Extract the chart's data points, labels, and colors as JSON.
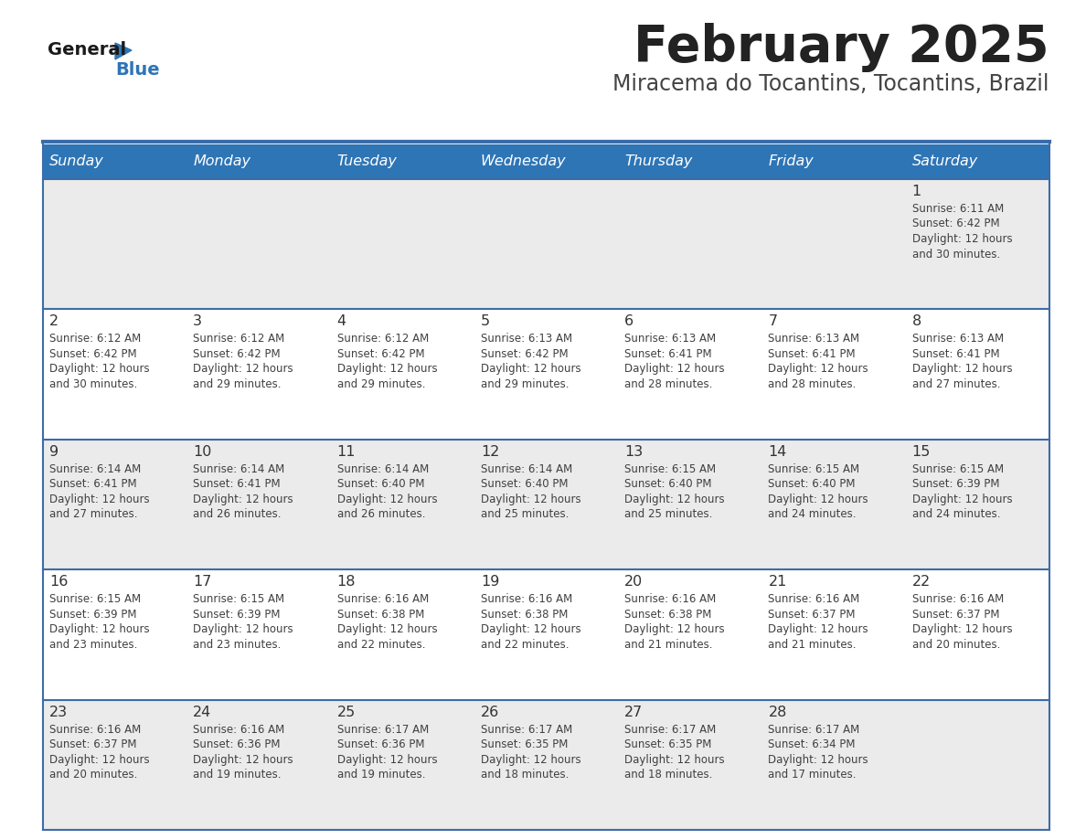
{
  "title": "February 2025",
  "subtitle": "Miracema do Tocantins, Tocantins, Brazil",
  "days_of_week": [
    "Sunday",
    "Monday",
    "Tuesday",
    "Wednesday",
    "Thursday",
    "Friday",
    "Saturday"
  ],
  "header_bg": "#2E75B6",
  "header_text": "#FFFFFF",
  "cell_bg_odd": "#EBEBEB",
  "cell_bg_even": "#FFFFFF",
  "separator_color": "#3C6CA8",
  "day_number_color": "#333333",
  "text_color": "#404040",
  "title_color": "#222222",
  "subtitle_color": "#444444",
  "calendar_data": [
    {
      "day": 1,
      "row": 0,
      "col": 6,
      "sunrise": "6:11 AM",
      "sunset": "6:42 PM",
      "daylight_hours": 12,
      "daylight_minutes": 30
    },
    {
      "day": 2,
      "row": 1,
      "col": 0,
      "sunrise": "6:12 AM",
      "sunset": "6:42 PM",
      "daylight_hours": 12,
      "daylight_minutes": 30
    },
    {
      "day": 3,
      "row": 1,
      "col": 1,
      "sunrise": "6:12 AM",
      "sunset": "6:42 PM",
      "daylight_hours": 12,
      "daylight_minutes": 29
    },
    {
      "day": 4,
      "row": 1,
      "col": 2,
      "sunrise": "6:12 AM",
      "sunset": "6:42 PM",
      "daylight_hours": 12,
      "daylight_minutes": 29
    },
    {
      "day": 5,
      "row": 1,
      "col": 3,
      "sunrise": "6:13 AM",
      "sunset": "6:42 PM",
      "daylight_hours": 12,
      "daylight_minutes": 29
    },
    {
      "day": 6,
      "row": 1,
      "col": 4,
      "sunrise": "6:13 AM",
      "sunset": "6:41 PM",
      "daylight_hours": 12,
      "daylight_minutes": 28
    },
    {
      "day": 7,
      "row": 1,
      "col": 5,
      "sunrise": "6:13 AM",
      "sunset": "6:41 PM",
      "daylight_hours": 12,
      "daylight_minutes": 28
    },
    {
      "day": 8,
      "row": 1,
      "col": 6,
      "sunrise": "6:13 AM",
      "sunset": "6:41 PM",
      "daylight_hours": 12,
      "daylight_minutes": 27
    },
    {
      "day": 9,
      "row": 2,
      "col": 0,
      "sunrise": "6:14 AM",
      "sunset": "6:41 PM",
      "daylight_hours": 12,
      "daylight_minutes": 27
    },
    {
      "day": 10,
      "row": 2,
      "col": 1,
      "sunrise": "6:14 AM",
      "sunset": "6:41 PM",
      "daylight_hours": 12,
      "daylight_minutes": 26
    },
    {
      "day": 11,
      "row": 2,
      "col": 2,
      "sunrise": "6:14 AM",
      "sunset": "6:40 PM",
      "daylight_hours": 12,
      "daylight_minutes": 26
    },
    {
      "day": 12,
      "row": 2,
      "col": 3,
      "sunrise": "6:14 AM",
      "sunset": "6:40 PM",
      "daylight_hours": 12,
      "daylight_minutes": 25
    },
    {
      "day": 13,
      "row": 2,
      "col": 4,
      "sunrise": "6:15 AM",
      "sunset": "6:40 PM",
      "daylight_hours": 12,
      "daylight_minutes": 25
    },
    {
      "day": 14,
      "row": 2,
      "col": 5,
      "sunrise": "6:15 AM",
      "sunset": "6:40 PM",
      "daylight_hours": 12,
      "daylight_minutes": 24
    },
    {
      "day": 15,
      "row": 2,
      "col": 6,
      "sunrise": "6:15 AM",
      "sunset": "6:39 PM",
      "daylight_hours": 12,
      "daylight_minutes": 24
    },
    {
      "day": 16,
      "row": 3,
      "col": 0,
      "sunrise": "6:15 AM",
      "sunset": "6:39 PM",
      "daylight_hours": 12,
      "daylight_minutes": 23
    },
    {
      "day": 17,
      "row": 3,
      "col": 1,
      "sunrise": "6:15 AM",
      "sunset": "6:39 PM",
      "daylight_hours": 12,
      "daylight_minutes": 23
    },
    {
      "day": 18,
      "row": 3,
      "col": 2,
      "sunrise": "6:16 AM",
      "sunset": "6:38 PM",
      "daylight_hours": 12,
      "daylight_minutes": 22
    },
    {
      "day": 19,
      "row": 3,
      "col": 3,
      "sunrise": "6:16 AM",
      "sunset": "6:38 PM",
      "daylight_hours": 12,
      "daylight_minutes": 22
    },
    {
      "day": 20,
      "row": 3,
      "col": 4,
      "sunrise": "6:16 AM",
      "sunset": "6:38 PM",
      "daylight_hours": 12,
      "daylight_minutes": 21
    },
    {
      "day": 21,
      "row": 3,
      "col": 5,
      "sunrise": "6:16 AM",
      "sunset": "6:37 PM",
      "daylight_hours": 12,
      "daylight_minutes": 21
    },
    {
      "day": 22,
      "row": 3,
      "col": 6,
      "sunrise": "6:16 AM",
      "sunset": "6:37 PM",
      "daylight_hours": 12,
      "daylight_minutes": 20
    },
    {
      "day": 23,
      "row": 4,
      "col": 0,
      "sunrise": "6:16 AM",
      "sunset": "6:37 PM",
      "daylight_hours": 12,
      "daylight_minutes": 20
    },
    {
      "day": 24,
      "row": 4,
      "col": 1,
      "sunrise": "6:16 AM",
      "sunset": "6:36 PM",
      "daylight_hours": 12,
      "daylight_minutes": 19
    },
    {
      "day": 25,
      "row": 4,
      "col": 2,
      "sunrise": "6:17 AM",
      "sunset": "6:36 PM",
      "daylight_hours": 12,
      "daylight_minutes": 19
    },
    {
      "day": 26,
      "row": 4,
      "col": 3,
      "sunrise": "6:17 AM",
      "sunset": "6:35 PM",
      "daylight_hours": 12,
      "daylight_minutes": 18
    },
    {
      "day": 27,
      "row": 4,
      "col": 4,
      "sunrise": "6:17 AM",
      "sunset": "6:35 PM",
      "daylight_hours": 12,
      "daylight_minutes": 18
    },
    {
      "day": 28,
      "row": 4,
      "col": 5,
      "sunrise": "6:17 AM",
      "sunset": "6:34 PM",
      "daylight_hours": 12,
      "daylight_minutes": 17
    }
  ]
}
